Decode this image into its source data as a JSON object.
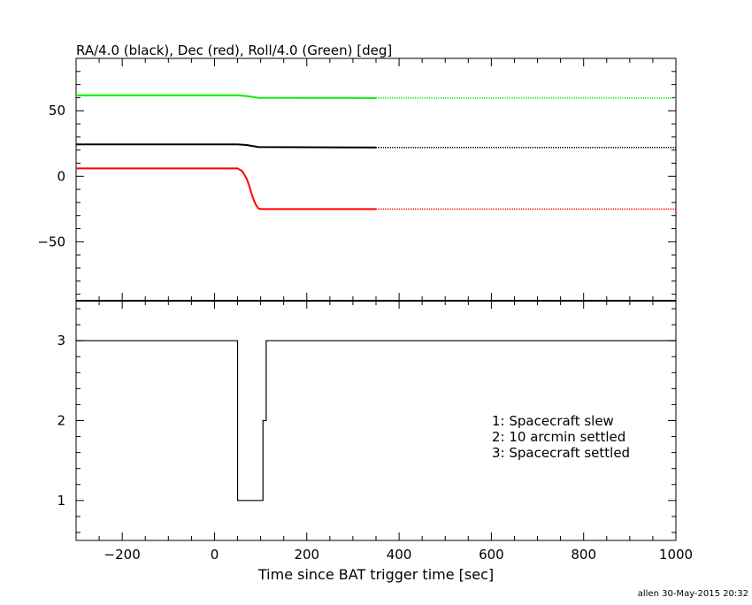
{
  "chart_data": [
    {
      "type": "line",
      "title": "RA/4.0 (black), Dec (red), Roll/4.0 (Green) [deg]",
      "xlim": [
        -300,
        1000
      ],
      "ylim": [
        -95,
        90
      ],
      "x_ticks": [
        -200,
        0,
        200,
        400,
        600,
        800,
        1000
      ],
      "y_ticks": [
        -50,
        0,
        50
      ],
      "grid": false,
      "series": [
        {
          "color": "#000000",
          "solid": {
            "x": [
              -300,
              50,
              70,
              95,
              350
            ],
            "y": [
              24.3,
              24.3,
              23.8,
              22.3,
              22.0
            ]
          },
          "dotted": {
            "x": [
              350,
              1000
            ],
            "y": [
              22.0,
              22.0
            ]
          }
        },
        {
          "color": "#ff0000",
          "solid": {
            "x": [
              -300,
              50,
              60,
              70,
              75,
              80,
              85,
              90,
              95,
              100,
              350
            ],
            "y": [
              6,
              6,
              4,
              -2,
              -7,
              -13,
              -18,
              -22,
              -24.5,
              -25,
              -25
            ]
          },
          "dotted": {
            "x": [
              350,
              1000
            ],
            "y": [
              -25,
              -25
            ]
          }
        },
        {
          "color": "#00ee00",
          "solid": {
            "x": [
              -300,
              50,
              70,
              95,
              350
            ],
            "y": [
              61.8,
              61.8,
              61.2,
              59.9,
              59.7
            ]
          },
          "dotted": {
            "x": [
              350,
              1000
            ],
            "y": [
              59.7,
              59.7
            ]
          }
        }
      ]
    },
    {
      "type": "line",
      "step": true,
      "xlim": [
        -300,
        1000
      ],
      "ylim": [
        0.5,
        3.5
      ],
      "x_ticks": [
        -200,
        0,
        200,
        400,
        600,
        800,
        1000
      ],
      "y_ticks": [
        1,
        2,
        3
      ],
      "xlabel": "Time since BAT trigger time [sec]",
      "grid": false,
      "series": [
        {
          "color": "#000000",
          "x": [
            -300,
            50,
            50,
            105,
            105,
            112,
            112,
            1000
          ],
          "y": [
            3,
            3,
            1,
            1,
            2,
            2,
            3,
            3
          ]
        }
      ],
      "annotations": [
        "1: Spacecraft slew",
        "2: 10 arcmin settled",
        "3: Spacecraft settled"
      ]
    }
  ],
  "footer": "allen 30-May-2015 20:32"
}
